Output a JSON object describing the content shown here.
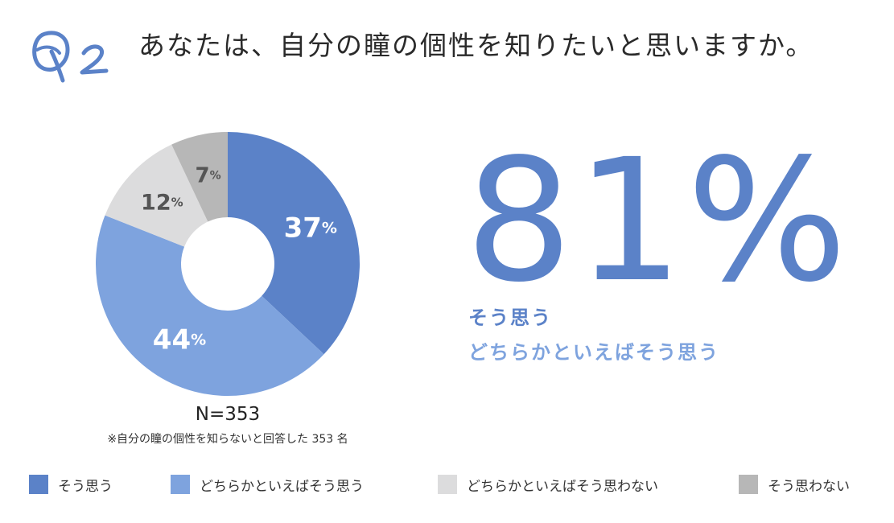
{
  "header": {
    "badge": "Q2",
    "title": "あなたは、自分の瞳の個性を知りたいと思いますか。"
  },
  "chart_data": {
    "type": "pie",
    "categories": [
      "そう思う",
      "どちらかといえばそう思う",
      "どちらかといえばそう思わない",
      "そう思わない"
    ],
    "values": [
      37,
      44,
      12,
      7
    ],
    "value_labels": [
      "37",
      "44",
      "12",
      "7"
    ],
    "unit": "%",
    "colors": [
      "#5b82c8",
      "#7ea3de",
      "#dcdcdd",
      "#b7b7b7"
    ],
    "label_colors": [
      "#ffffff",
      "#ffffff",
      "#555555",
      "#555555"
    ],
    "legend_position": "bottom",
    "n_label": "N=353",
    "note": "※自分の瞳の個性を知らないと回答した 353 名"
  },
  "summary": {
    "value": "81%",
    "label_1": "そう思う",
    "label_2": "どちらかといえばそう思う"
  }
}
